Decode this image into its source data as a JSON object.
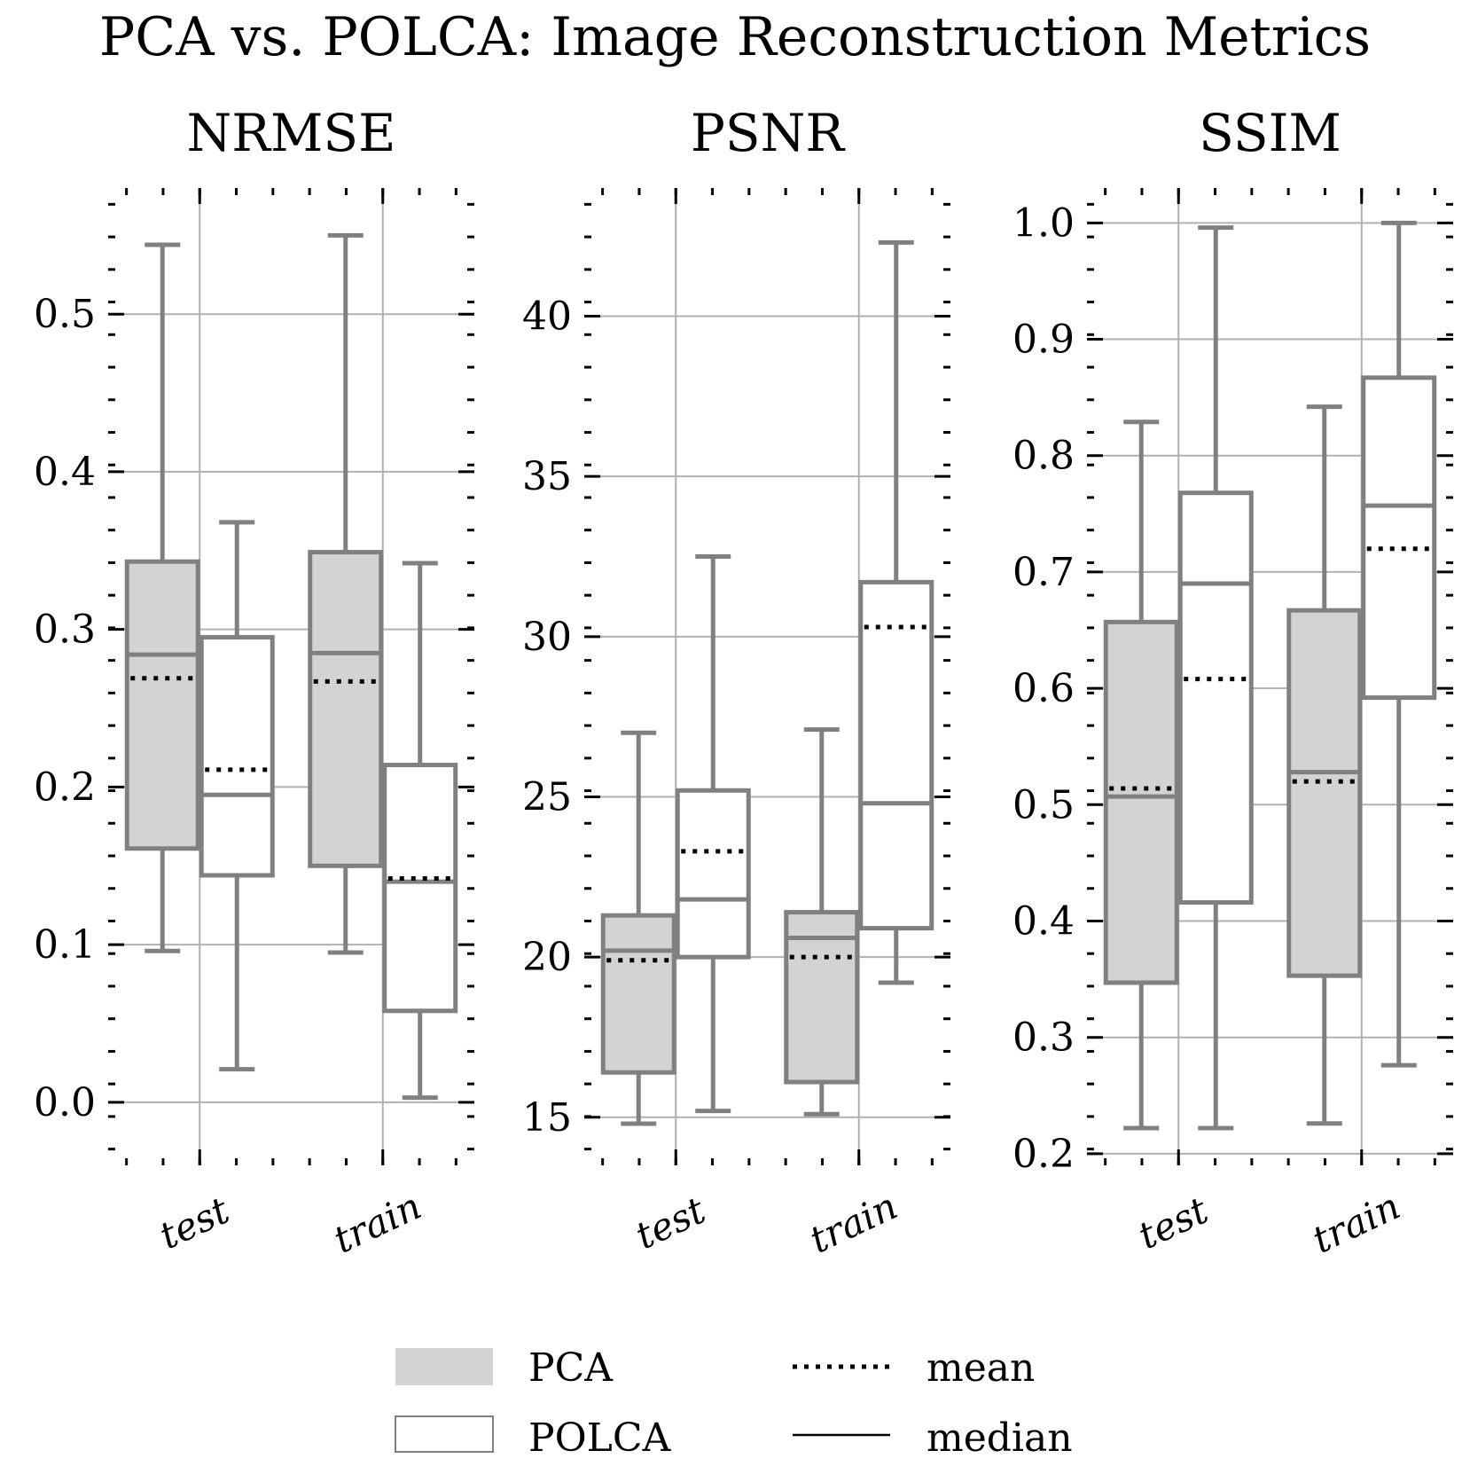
{
  "title": "PCA vs. POLCA: Image Reconstruction Metrics",
  "colors": {
    "pca_fill": "#d3d3d3",
    "polca_fill": "#ffffff",
    "box_edge": "#808080",
    "grid": "#b0b0b0",
    "mean_line": "#000000"
  },
  "legend": {
    "pca": "PCA",
    "polca": "POLCA",
    "mean": "mean",
    "median": "median"
  },
  "chart_data": [
    {
      "type": "box",
      "title": "NRMSE",
      "categories": [
        "test",
        "train"
      ],
      "ylim": [
        -0.04,
        0.58
      ],
      "yticks": [
        0.0,
        0.1,
        0.2,
        0.3,
        0.4,
        0.5
      ],
      "ytick_labels": [
        "0.0",
        "0.1",
        "0.2",
        "0.3",
        "0.4",
        "0.5"
      ],
      "series": [
        {
          "name": "PCA",
          "boxes": [
            {
              "category": "test",
              "whislo": 0.096,
              "q1": 0.161,
              "med": 0.284,
              "mean": 0.269,
              "q3": 0.343,
              "whishi": 0.544
            },
            {
              "category": "train",
              "whislo": 0.095,
              "q1": 0.15,
              "med": 0.285,
              "mean": 0.267,
              "q3": 0.349,
              "whishi": 0.55
            }
          ]
        },
        {
          "name": "POLCA",
          "boxes": [
            {
              "category": "test",
              "whislo": 0.021,
              "q1": 0.144,
              "med": 0.195,
              "mean": 0.211,
              "q3": 0.295,
              "whishi": 0.368
            },
            {
              "category": "train",
              "whislo": 0.003,
              "q1": 0.058,
              "med": 0.14,
              "mean": 0.142,
              "q3": 0.214,
              "whishi": 0.342
            }
          ]
        }
      ]
    },
    {
      "type": "box",
      "title": "PSNR",
      "categories": [
        "test",
        "train"
      ],
      "ylim": [
        13.5,
        44
      ],
      "yticks": [
        15,
        20,
        25,
        30,
        35,
        40
      ],
      "ytick_labels": [
        "15",
        "20",
        "25",
        "30",
        "35",
        "40"
      ],
      "series": [
        {
          "name": "PCA",
          "boxes": [
            {
              "category": "test",
              "whislo": 14.8,
              "q1": 16.4,
              "med": 20.2,
              "mean": 19.9,
              "q3": 21.3,
              "whishi": 27.0
            },
            {
              "category": "train",
              "whislo": 15.1,
              "q1": 16.1,
              "med": 20.6,
              "mean": 20.0,
              "q3": 21.4,
              "whishi": 27.1
            }
          ]
        },
        {
          "name": "POLCA",
          "boxes": [
            {
              "category": "test",
              "whislo": 15.2,
              "q1": 20.0,
              "med": 21.8,
              "mean": 23.3,
              "q3": 25.2,
              "whishi": 32.5
            },
            {
              "category": "train",
              "whislo": 19.2,
              "q1": 20.9,
              "med": 24.8,
              "mean": 30.3,
              "q3": 31.7,
              "whishi": 42.3
            }
          ]
        }
      ]
    },
    {
      "type": "box",
      "title": "SSIM",
      "categories": [
        "test",
        "train"
      ],
      "ylim": [
        0.19,
        1.03
      ],
      "yticks": [
        0.2,
        0.3,
        0.4,
        0.5,
        0.6,
        0.7,
        0.8,
        0.9,
        1.0
      ],
      "ytick_labels": [
        "0.2",
        "0.3",
        "0.4",
        "0.5",
        "0.6",
        "0.7",
        "0.8",
        "0.9",
        "1.0"
      ],
      "series": [
        {
          "name": "PCA",
          "boxes": [
            {
              "category": "test",
              "whislo": 0.222,
              "q1": 0.347,
              "med": 0.507,
              "mean": 0.514,
              "q3": 0.657,
              "whishi": 0.829
            },
            {
              "category": "train",
              "whislo": 0.226,
              "q1": 0.353,
              "med": 0.528,
              "mean": 0.52,
              "q3": 0.667,
              "whishi": 0.842
            }
          ]
        },
        {
          "name": "POLCA",
          "boxes": [
            {
              "category": "test",
              "whislo": 0.222,
              "q1": 0.416,
              "med": 0.69,
              "mean": 0.608,
              "q3": 0.768,
              "whishi": 0.996
            },
            {
              "category": "train",
              "whislo": 0.276,
              "q1": 0.592,
              "med": 0.757,
              "mean": 0.72,
              "q3": 0.867,
              "whishi": 1.0
            }
          ]
        }
      ]
    }
  ]
}
